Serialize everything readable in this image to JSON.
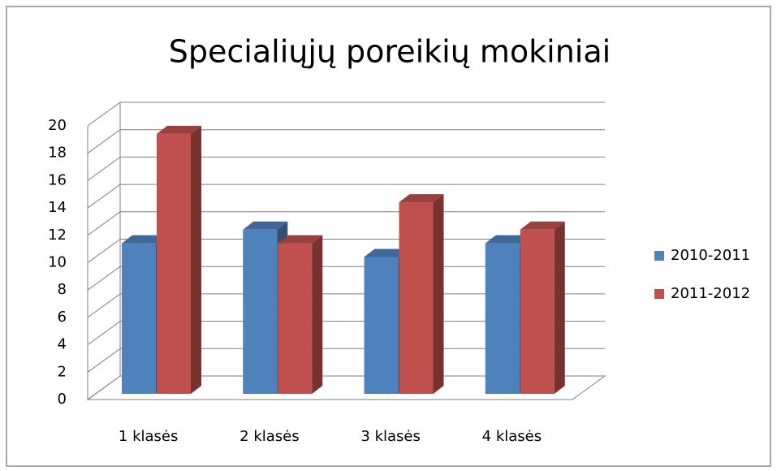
{
  "chart_data": {
    "type": "bar3d",
    "title": "Specialiųjų poreikių mokiniai",
    "categories": [
      "1 klasės",
      "2 klasės",
      "3 klasės",
      "4 klasės"
    ],
    "series": [
      {
        "name": "2010-2011",
        "color": "#4f81bd",
        "values": [
          11,
          12,
          10,
          11
        ]
      },
      {
        "name": "2011-2012",
        "color": "#c0504d",
        "values": [
          19,
          11,
          14,
          12
        ]
      }
    ],
    "ylim": [
      0,
      20
    ],
    "yticks": [
      0,
      2,
      4,
      6,
      8,
      10,
      12,
      14,
      16,
      18,
      20
    ],
    "grid": true,
    "legend": "right"
  }
}
